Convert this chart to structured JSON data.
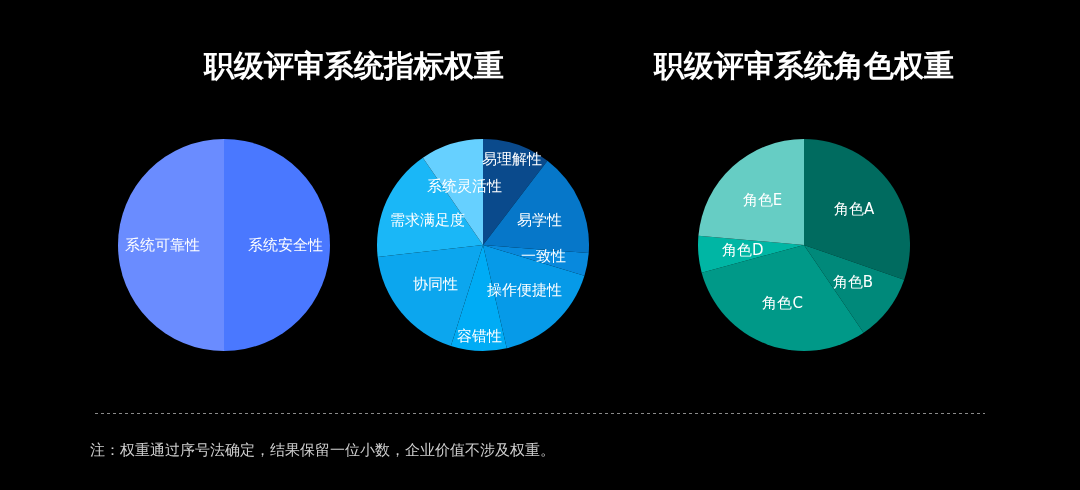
{
  "chart_data": [
    {
      "type": "pie",
      "title": "职级评审系统指标权重",
      "categories": [
        "系统安全性",
        "系统可靠性"
      ],
      "values": [
        50,
        50
      ],
      "colors": [
        "#4a78ff",
        "#6a8cff"
      ],
      "annotations": [
        "注：权重通过序号法确定，结果保留一位小数，企业价值不涉及权重。"
      ]
    },
    {
      "type": "pie",
      "categories": [
        "易理解性",
        "易学性",
        "一致性",
        "操作便捷性",
        "容错性",
        "协同性",
        "需求满足度",
        "系统灵活性"
      ],
      "values": [
        10.4,
        15.8,
        3.5,
        16.7,
        8.5,
        18.3,
        17.2,
        9.6
      ],
      "colors": [
        "#0a4a8c",
        "#0677c9",
        "#0889dd",
        "#069ae8",
        "#00acf5",
        "#0ca6ee",
        "#1ab7f7",
        "#66d0ff"
      ]
    },
    {
      "type": "pie",
      "title": "职级评审系统角色权重",
      "categories": [
        "角色A",
        "角色B",
        "角色C",
        "角色D",
        "角色E"
      ],
      "values": [
        30.3,
        10.2,
        30.3,
        5.6,
        23.6
      ],
      "colors": [
        "#006b5f",
        "#00897a",
        "#009988",
        "#00b6a4",
        "#66cdc4"
      ]
    }
  ]
}
